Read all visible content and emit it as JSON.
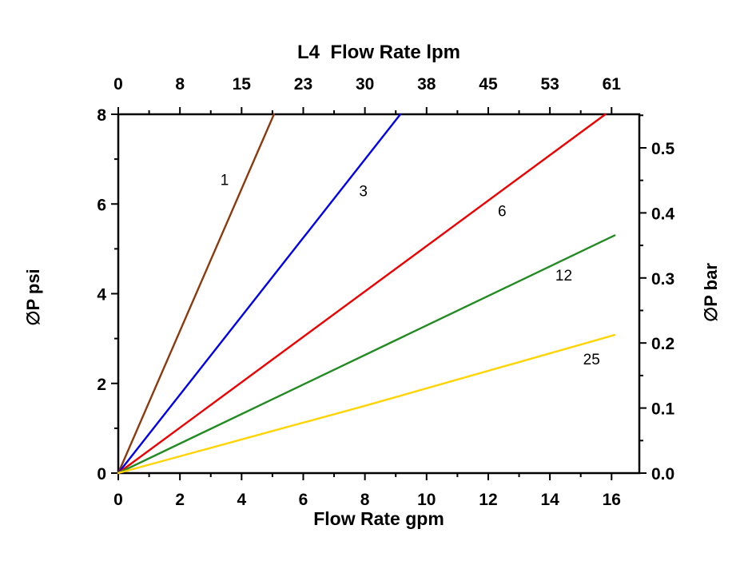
{
  "page": {
    "background": "#FFFFFF",
    "axis_color": "#000000",
    "text_color": "#000000"
  },
  "chart_data": {
    "type": "line",
    "title": "L4  Flow Rate lpm",
    "xlabel": "Flow Rate gpm",
    "ylabel_left": "∅P psi",
    "ylabel_right": "∅P bar",
    "legend": "inline-labels",
    "grid": false,
    "axes": {
      "xlim": [
        0,
        16.9
      ],
      "ylim_psi": [
        0,
        8
      ],
      "psi_per_bar": 14.5038,
      "bottom_ticks": {
        "values_gpm": [
          0,
          2,
          4,
          6,
          8,
          10,
          12,
          14,
          16
        ],
        "labels": [
          "0",
          "2",
          "4",
          "6",
          "8",
          "10",
          "12",
          "14",
          "16"
        ]
      },
      "top_ticks": {
        "values_gpm": [
          0,
          2,
          4,
          6,
          8,
          10,
          12,
          14,
          16
        ],
        "labels_lpm": [
          "0",
          "8",
          "15",
          "23",
          "30",
          "38",
          "45",
          "53",
          "61"
        ]
      },
      "left_ticks": {
        "values_psi": [
          0,
          2,
          4,
          6,
          8
        ],
        "labels": [
          "0",
          "2",
          "4",
          "6",
          "8"
        ]
      },
      "right_ticks": {
        "values_bar": [
          0.0,
          0.1,
          0.2,
          0.3,
          0.4,
          0.5
        ],
        "labels": [
          "0.0",
          "0.1",
          "0.2",
          "0.3",
          "0.4",
          "0.5"
        ]
      },
      "minor_ticks": {
        "bottom_gpm": [
          1,
          3,
          5,
          7,
          9,
          11,
          13,
          15
        ],
        "top_gpm": [
          1,
          3,
          5,
          7,
          9,
          11,
          13,
          15
        ],
        "left_psi": [
          1,
          3,
          5,
          7
        ],
        "right_bar": [
          0.05,
          0.15,
          0.25,
          0.35,
          0.45,
          0.55
        ]
      }
    },
    "series": [
      {
        "name": "1",
        "color": "#8B3A0E",
        "points": [
          [
            0,
            0
          ],
          [
            5.05,
            8
          ]
        ],
        "label_at": [
          3.45,
          6.55
        ]
      },
      {
        "name": "3",
        "color": "#0000EE",
        "points": [
          [
            0,
            0
          ],
          [
            9.15,
            8
          ]
        ],
        "label_at": [
          7.95,
          6.3
        ]
      },
      {
        "name": "6",
        "color": "#EE0000",
        "points": [
          [
            0,
            0
          ],
          [
            15.8,
            8
          ]
        ],
        "label_at": [
          12.45,
          5.85
        ]
      },
      {
        "name": "12",
        "color": "#228B22",
        "points": [
          [
            0,
            0
          ],
          [
            16.1,
            5.3
          ]
        ],
        "label_at": [
          14.45,
          4.42
        ]
      },
      {
        "name": "25",
        "color": "#FFD400",
        "points": [
          [
            0,
            0
          ],
          [
            8,
            1.5
          ],
          [
            16.1,
            3.08
          ]
        ],
        "label_at": [
          15.35,
          2.55
        ]
      }
    ]
  }
}
